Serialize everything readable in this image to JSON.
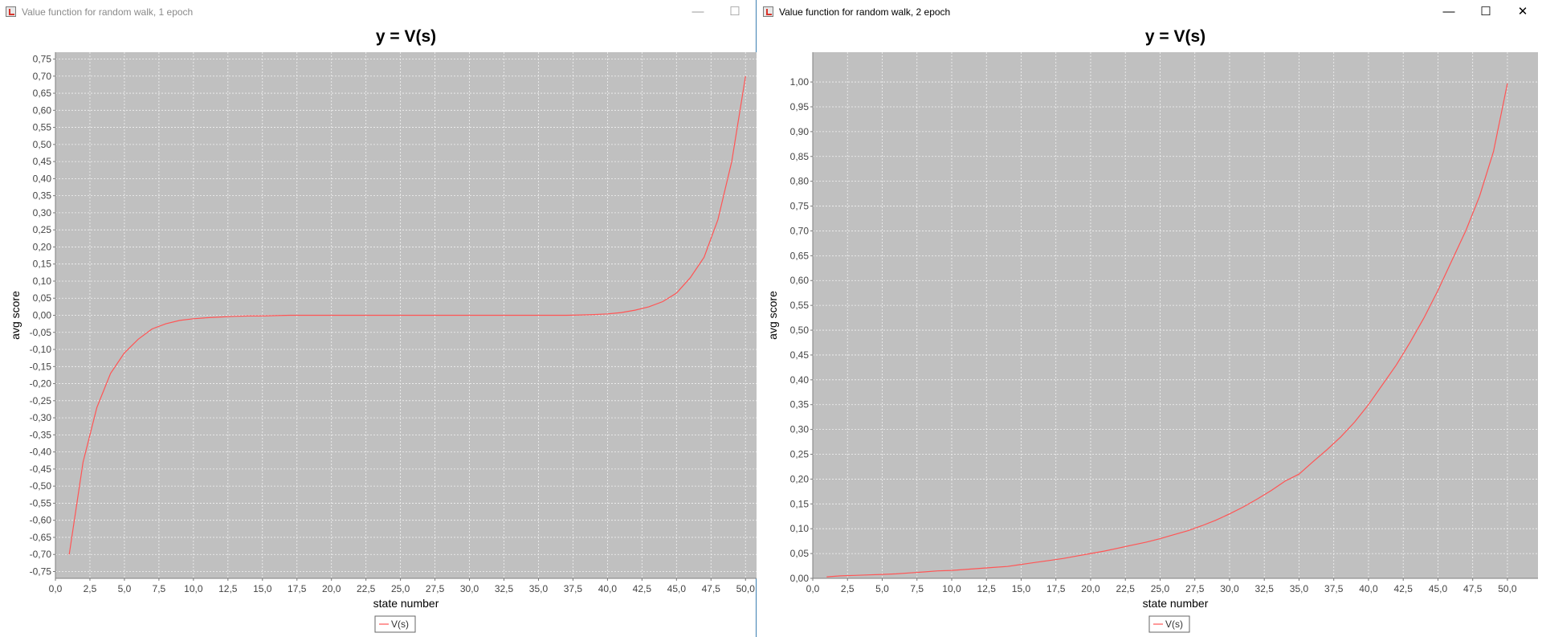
{
  "windows": [
    {
      "title": "Value function for random walk, 1 epoch",
      "controls": {
        "minimize": "—",
        "maximize": "☐"
      },
      "active": false,
      "chart_data": {
        "type": "line",
        "title": "y = V(s)",
        "xlabel": "state number",
        "ylabel": "avg score",
        "xlim": [
          0,
          50.8
        ],
        "ylim": [
          -0.77,
          0.77
        ],
        "xticks": [
          "0,0",
          "2,5",
          "5,0",
          "7,5",
          "10,0",
          "12,5",
          "15,0",
          "17,5",
          "20,0",
          "22,5",
          "25,0",
          "27,5",
          "30,0",
          "32,5",
          "35,0",
          "37,5",
          "40,0",
          "42,5",
          "45,0",
          "47,5",
          "50,0"
        ],
        "yticks": [
          "0,75",
          "0,70",
          "0,65",
          "0,60",
          "0,55",
          "0,50",
          "0,45",
          "0,40",
          "0,35",
          "0,30",
          "0,25",
          "0,20",
          "0,15",
          "0,10",
          "0,05",
          "0,00",
          "-0,05",
          "-0,10",
          "-0,15",
          "-0,20",
          "-0,25",
          "-0,30",
          "-0,35",
          "-0,40",
          "-0,45",
          "-0,50",
          "-0,55",
          "-0,60",
          "-0,65",
          "-0,70",
          "-0,75"
        ],
        "grid": true,
        "legend_position": "bottom-center",
        "series": [
          {
            "name": "V(s)",
            "color": "#ff5555",
            "x": [
              1,
              2,
              3,
              4,
              5,
              6,
              7,
              8,
              9,
              10,
              11,
              12,
              13,
              14,
              15,
              16,
              17,
              18,
              19,
              20,
              21,
              22,
              23,
              24,
              25,
              26,
              27,
              28,
              29,
              30,
              31,
              32,
              33,
              34,
              35,
              36,
              37,
              38,
              39,
              40,
              41,
              42,
              43,
              44,
              45,
              46,
              47,
              48,
              49,
              50
            ],
            "y": [
              -0.7,
              -0.43,
              -0.27,
              -0.17,
              -0.11,
              -0.07,
              -0.04,
              -0.025,
              -0.015,
              -0.01,
              -0.007,
              -0.005,
              -0.003,
              -0.002,
              -0.002,
              -0.001,
              0,
              0,
              0,
              0,
              0,
              0,
              0,
              0,
              0,
              0,
              0,
              0,
              0,
              0,
              0,
              0,
              0,
              0,
              0,
              0,
              0,
              0.001,
              0.002,
              0.004,
              0.008,
              0.015,
              0.025,
              0.04,
              0.065,
              0.11,
              0.17,
              0.28,
              0.45,
              0.7
            ]
          }
        ]
      }
    },
    {
      "title": "Value function for random walk, 2 epoch",
      "controls": {
        "minimize": "—",
        "maximize": "☐",
        "close": "✕"
      },
      "active": true,
      "chart_data": {
        "type": "line",
        "title": "y = V(s)",
        "xlabel": "state number",
        "ylabel": "avg score",
        "xlim": [
          0,
          52.2
        ],
        "ylim": [
          0,
          1.06
        ],
        "xticks": [
          "0,0",
          "2,5",
          "5,0",
          "7,5",
          "10,0",
          "12,5",
          "15,0",
          "17,5",
          "20,0",
          "22,5",
          "25,0",
          "27,5",
          "30,0",
          "32,5",
          "35,0",
          "37,5",
          "40,0",
          "42,5",
          "45,0",
          "47,5",
          "50,0"
        ],
        "yticks": [
          "1,00",
          "0,95",
          "0,90",
          "0,85",
          "0,80",
          "0,75",
          "0,70",
          "0,65",
          "0,60",
          "0,55",
          "0,50",
          "0,45",
          "0,40",
          "0,35",
          "0,30",
          "0,25",
          "0,20",
          "0,15",
          "0,10",
          "0,05",
          "0,00"
        ],
        "grid": true,
        "legend_position": "bottom-center",
        "series": [
          {
            "name": "V(s)",
            "color": "#ff5555",
            "x": [
              1,
              2,
              3,
              4,
              5,
              6,
              7,
              8,
              9,
              10,
              11,
              12,
              13,
              14,
              15,
              16,
              17,
              18,
              19,
              20,
              21,
              22,
              23,
              24,
              25,
              26,
              27,
              28,
              29,
              30,
              31,
              32,
              33,
              34,
              35,
              36,
              37,
              38,
              39,
              40,
              41,
              42,
              43,
              44,
              45,
              46,
              47,
              48,
              49,
              50
            ],
            "y": [
              0.003,
              0.005,
              0.006,
              0.007,
              0.008,
              0.009,
              0.011,
              0.013,
              0.015,
              0.016,
              0.018,
              0.02,
              0.022,
              0.024,
              0.028,
              0.032,
              0.036,
              0.04,
              0.045,
              0.05,
              0.055,
              0.061,
              0.067,
              0.073,
              0.08,
              0.088,
              0.096,
              0.106,
              0.117,
              0.13,
              0.144,
              0.16,
              0.177,
              0.196,
              0.21,
              0.235,
              0.259,
              0.285,
              0.315,
              0.35,
              0.39,
              0.43,
              0.476,
              0.525,
              0.58,
              0.64,
              0.7,
              0.77,
              0.86,
              0.997
            ]
          }
        ]
      }
    }
  ]
}
